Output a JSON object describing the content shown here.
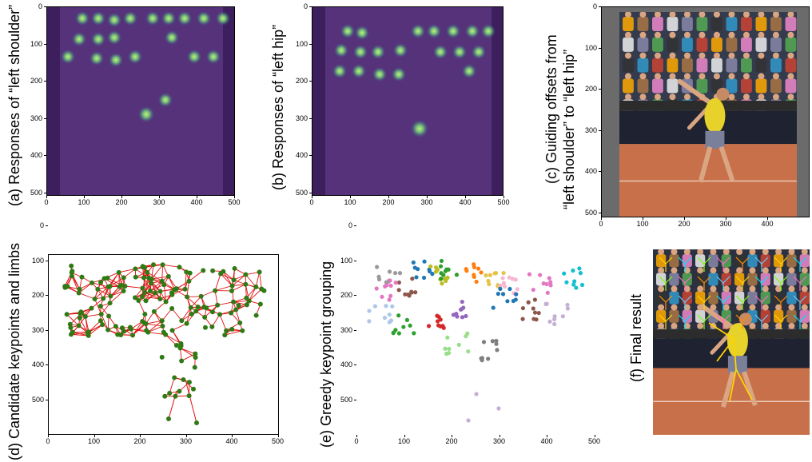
{
  "panels": {
    "a": {
      "caption": "(a) Responses of “left shoulder”"
    },
    "b": {
      "caption": "(b) Responses of “left hip”"
    },
    "c": {
      "caption_line1": "(c) Guiding offsets from",
      "caption_line2": "“left shoulder” to “left hip”"
    },
    "d": {
      "caption": "(d) Candidate  keypoints and limbs"
    },
    "e": {
      "caption": "(e) Greedy keypoint grouping"
    },
    "f": {
      "caption": "(f) Final result"
    }
  },
  "axis_ticks": {
    "heat_y": [
      "0",
      "100",
      "200",
      "300",
      "400",
      "500"
    ],
    "heat_x": [
      "0",
      "100",
      "200",
      "300",
      "400",
      "500"
    ],
    "photo_y": [
      "0",
      "100",
      "200",
      "300",
      "400",
      "500"
    ],
    "photo_x": [
      "0",
      "100",
      "200",
      "300",
      "400",
      "500"
    ],
    "scatter_y": [
      "0",
      "100",
      "200",
      "300",
      "400",
      "500"
    ],
    "scatter_x": [
      "0",
      "100",
      "200",
      "300",
      "400",
      "500"
    ]
  },
  "colors": {
    "heat_bg": "#3d1f5e",
    "heat_spot": "#7fe07a",
    "limb": "#e01010",
    "keypoint": "#2f7a14",
    "photo_frame": "#6b6b6b"
  }
}
